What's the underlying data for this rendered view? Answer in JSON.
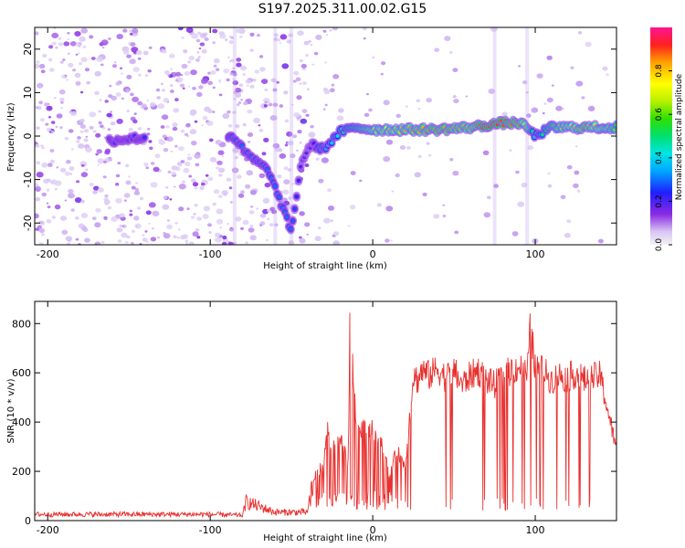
{
  "title": "S197.2025.311.00.02.G15",
  "colors": {
    "snr_line": "#e8312f",
    "noise_low": "#d9c6f5",
    "noise_mid": "#b189ec",
    "noise_high": "#7a2be0"
  },
  "chart_data": [
    {
      "type": "heatmap",
      "xlabel": "Height of straight line (km)",
      "ylabel": "Frequency (Hz)",
      "xlim": [
        -208,
        150
      ],
      "ylim": [
        -25,
        25
      ],
      "x_ticks": [
        -200,
        -100,
        0,
        100
      ],
      "y_ticks": [
        -20,
        -10,
        0,
        10,
        20
      ],
      "grid": false,
      "colorbar": {
        "label": "Normalized spectral amplitude",
        "range": [
          0,
          1
        ],
        "ticks": [
          0.0,
          0.2,
          0.4,
          0.6,
          0.8
        ]
      },
      "signal_track": {
        "x": [
          -160,
          -148,
          -86,
          -78,
          -64,
          -50,
          -44,
          -38,
          -30,
          -20,
          -10,
          0,
          20,
          40,
          60,
          70,
          80,
          90,
          95,
          100,
          110,
          130,
          150
        ],
        "freq": [
          -1,
          -0.5,
          0,
          -4,
          -8,
          -22,
          -6,
          -2,
          -3,
          1,
          2,
          1.5,
          1.5,
          1.5,
          2,
          2.5,
          3,
          3,
          2,
          0,
          2,
          2,
          2
        ],
        "amplitude": [
          0.25,
          0.25,
          0.3,
          0.3,
          0.3,
          0.3,
          0.2,
          0.2,
          0.35,
          0.45,
          0.55,
          0.7,
          0.8,
          0.85,
          0.8,
          0.95,
          0.9,
          0.85,
          0.7,
          0.4,
          0.6,
          0.85,
          0.6
        ]
      }
    },
    {
      "type": "line",
      "xlabel": "Height of straight line (km)",
      "ylabel": "SNR (10 * v/v)",
      "xlim": [
        -208,
        150
      ],
      "ylim": [
        0,
        890
      ],
      "x_ticks": [
        -200,
        -100,
        0,
        100
      ],
      "y_ticks": [
        0,
        200,
        400,
        600,
        800
      ],
      "grid": false,
      "series": [
        {
          "x": [
            -208,
            -100,
            -80,
            -78,
            -60,
            -40,
            -38,
            -30,
            -28,
            -25,
            -20,
            -15,
            -14,
            -10,
            -5,
            0,
            5,
            10,
            15,
            20,
            25,
            28,
            30,
            35,
            40,
            45,
            50,
            55,
            60,
            65,
            70,
            75,
            80,
            85,
            90,
            95,
            97,
            100,
            105,
            110,
            115,
            120,
            125,
            130,
            135,
            140,
            145,
            150
          ],
          "values": [
            30,
            30,
            25,
            90,
            40,
            40,
            160,
            250,
            400,
            300,
            350,
            240,
            880,
            380,
            400,
            390,
            350,
            200,
            300,
            230,
            620,
            600,
            640,
            620,
            650,
            610,
            640,
            580,
            620,
            640,
            600,
            580,
            620,
            640,
            660,
            620,
            820,
            660,
            640,
            600,
            620,
            610,
            630,
            600,
            610,
            620,
            460,
            300
          ]
        }
      ]
    }
  ]
}
